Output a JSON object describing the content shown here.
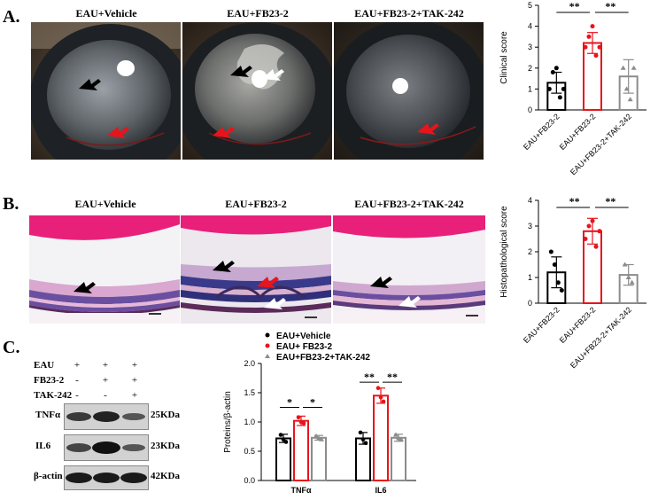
{
  "panels": {
    "a_letter": "A.",
    "b_letter": "B.",
    "c_letter": "C."
  },
  "photo_titles": [
    "EAU+Vehicle",
    "EAU+FB23-2",
    "EAU+FB23-2+TAK-242"
  ],
  "histo_titles": [
    "EAU+Vehicle",
    "EAU+FB23-2",
    "EAU+FB23-2+TAK-242"
  ],
  "western_blot": {
    "row_labels": [
      "EAU",
      "FB23-2",
      "TAK-242"
    ],
    "symbols": [
      [
        "+",
        "+",
        "+"
      ],
      [
        "-",
        "+",
        "+"
      ],
      [
        "-",
        "-",
        "+"
      ]
    ],
    "bands": [
      {
        "name": "TNFα",
        "kda": "25KDa"
      },
      {
        "name": "IL6",
        "kda": "23KDa"
      },
      {
        "name": "β-actin",
        "kda": "42KDa"
      }
    ]
  },
  "colors": {
    "vehicle": "#000000",
    "fb23": "#e8141c",
    "tak": "#8c8c8c",
    "arrow_black": "#000000",
    "arrow_red": "#e8141c",
    "arrow_white": "#ffffff"
  },
  "chart_data": [
    {
      "type": "bar",
      "categories": [
        "EAU+FB23-2",
        "EAU+FB23-2",
        "EAU+FB23-2+TAK-242"
      ],
      "values": [
        1.3,
        3.2,
        1.6
      ],
      "errors": [
        0.5,
        0.5,
        0.8
      ],
      "points": [
        [
          1.0,
          1.8,
          2.0,
          0.6,
          1.0
        ],
        [
          3.0,
          3.5,
          4.0,
          2.6,
          3.0
        ],
        [
          2.0,
          1.0,
          0.5,
          2.0
        ]
      ],
      "ylabel": "Clinical score",
      "ylim": [
        0,
        5
      ],
      "yticks": [
        0,
        1,
        2,
        3,
        4,
        5
      ],
      "significance": [
        "**",
        "**"
      ]
    },
    {
      "type": "bar",
      "categories": [
        "EAU+FB23-2",
        "EAU+FB23-2",
        "EAU+FB23-2+TAK-242"
      ],
      "values": [
        1.2,
        2.8,
        1.1
      ],
      "errors": [
        0.6,
        0.5,
        0.4
      ],
      "points": [
        [
          2.0,
          1.5,
          0.8,
          0.5
        ],
        [
          2.5,
          3.0,
          3.2,
          2.2,
          2.8
        ],
        [
          1.5,
          1.0,
          0.8
        ]
      ],
      "ylabel": "Histopathological score",
      "ylim": [
        0,
        4
      ],
      "yticks": [
        0,
        1,
        2,
        3,
        4
      ],
      "significance": [
        "**",
        "**"
      ]
    },
    {
      "type": "bar",
      "categories": [
        "TNFα",
        "IL6"
      ],
      "series": [
        {
          "name": "EAU+Vehicle",
          "values": [
            0.72,
            0.72
          ],
          "errors": [
            0.07,
            0.1
          ],
          "points": [
            [
              0.78,
              0.7,
              0.66
            ],
            [
              0.82,
              0.7,
              0.64
            ]
          ]
        },
        {
          "name": "EAU+ FB23-2",
          "values": [
            1.02,
            1.45
          ],
          "errors": [
            0.08,
            0.13
          ],
          "points": [
            [
              1.08,
              1.0,
              0.98
            ],
            [
              1.58,
              1.42,
              1.35
            ]
          ]
        },
        {
          "name": "EAU+FB23-2+TAK-242",
          "values": [
            0.73,
            0.73
          ],
          "errors": [
            0.04,
            0.06
          ],
          "points": [
            [
              0.76,
              0.72,
              0.7
            ],
            [
              0.78,
              0.72,
              0.7
            ]
          ]
        }
      ],
      "ylabel": "Proteins/β-actin",
      "ylim": [
        0,
        2.0
      ],
      "yticks": [
        "0.0",
        "0.5",
        "1.0",
        "1.5",
        "2.0"
      ],
      "significance": [
        "*",
        "*",
        "**",
        "**"
      ]
    }
  ]
}
